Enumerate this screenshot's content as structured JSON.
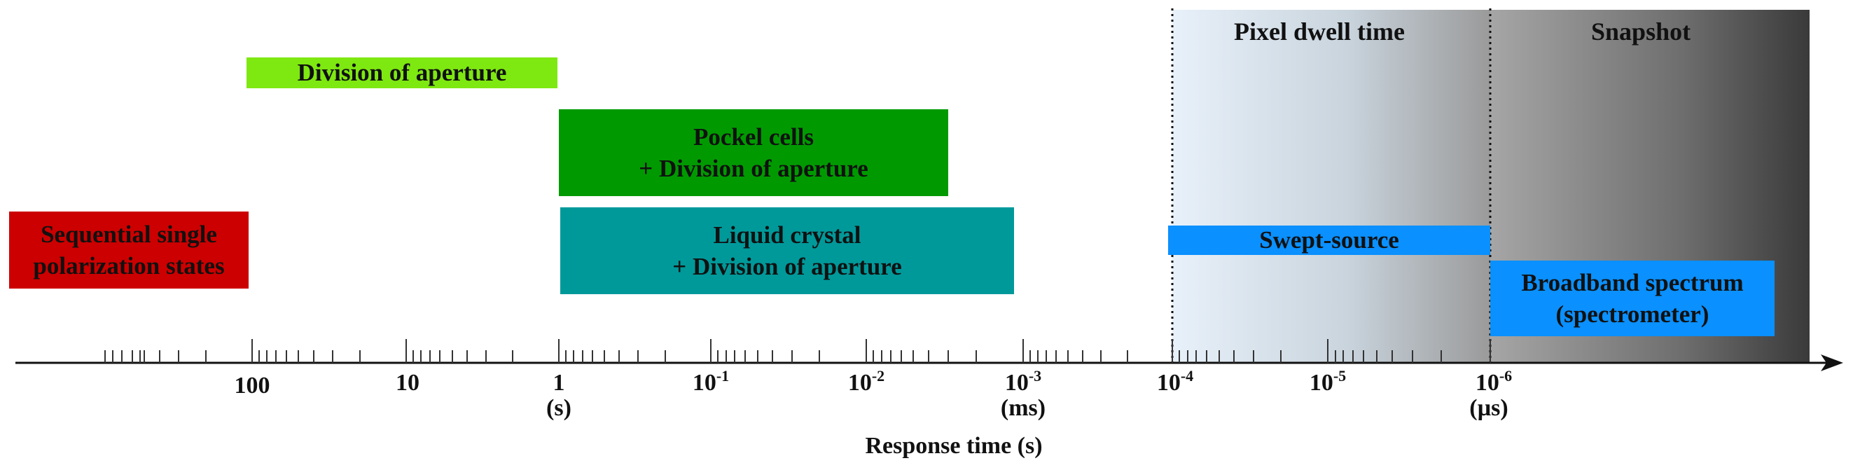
{
  "regions": {
    "pixel_dwell": {
      "label": "Pixel dwell time"
    },
    "snapshot": {
      "label": "Snapshot"
    }
  },
  "boxes": {
    "sequential": {
      "line1": "Sequential single",
      "line2": "polarization states",
      "color": "#cc0000"
    },
    "division_aperture": {
      "line1": "Division of aperture",
      "color": "#7ee811"
    },
    "pockel": {
      "line1": "Pockel cells",
      "line2": "+ Division of aperture",
      "color": "#009a00"
    },
    "liquid_crystal": {
      "line1": "Liquid crystal",
      "line2": "+ Division of aperture",
      "color": "#00999a"
    },
    "swept_source": {
      "line1": "Swept-source",
      "color": "#0a90ff"
    },
    "broadband": {
      "line1": "Broadband spectrum",
      "line2": "(spectrometer)",
      "color": "#0a90ff"
    }
  },
  "axis": {
    "title": "Response time (s)",
    "ticks": [
      {
        "base": "100",
        "exp": ""
      },
      {
        "base": "10",
        "exp": ""
      },
      {
        "base": "1",
        "exp": ""
      },
      {
        "base": "10",
        "exp": "-1"
      },
      {
        "base": "10",
        "exp": "-2"
      },
      {
        "base": "10",
        "exp": "-3"
      },
      {
        "base": "10",
        "exp": "-4"
      },
      {
        "base": "10",
        "exp": "-5"
      },
      {
        "base": "10",
        "exp": "-6"
      }
    ],
    "units": {
      "s": "(s)",
      "ms": "(ms)",
      "us": "(µs)"
    }
  }
}
